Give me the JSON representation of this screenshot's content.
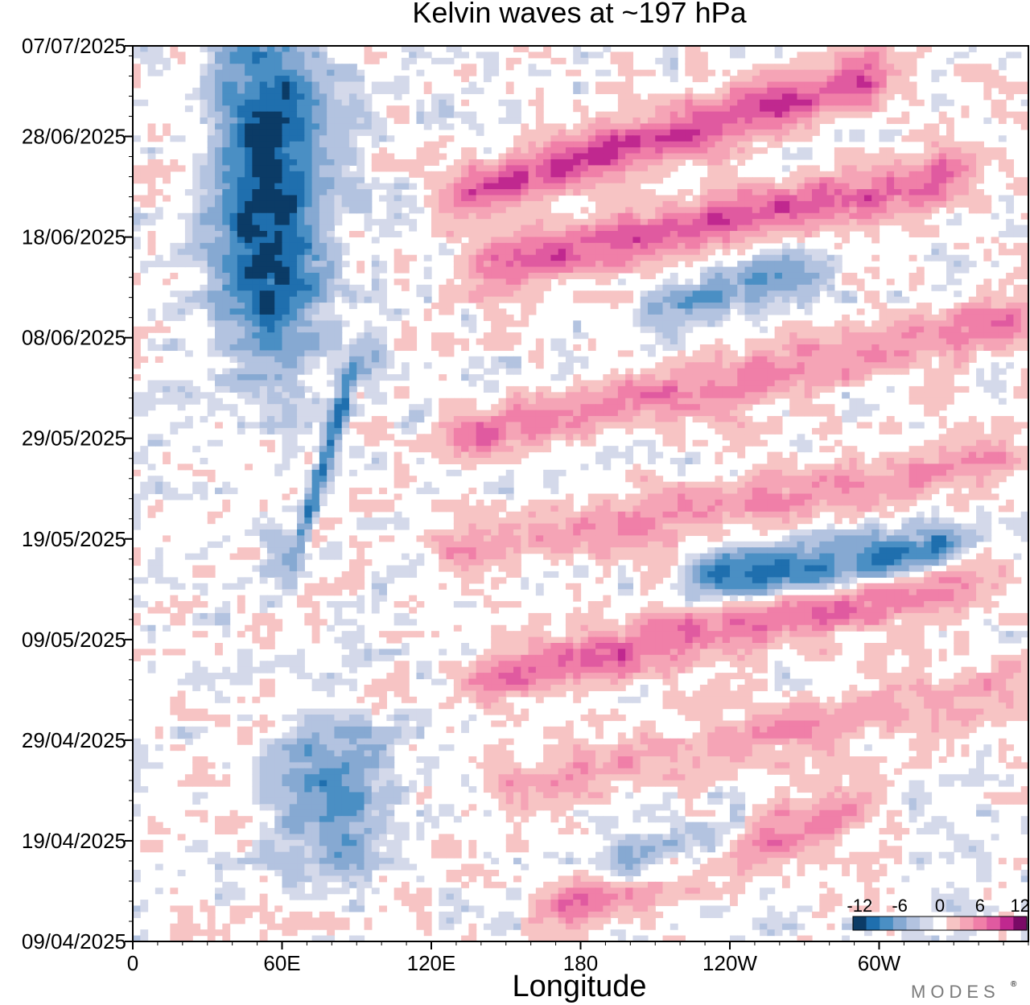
{
  "chart_data": {
    "type": "heatmap",
    "title": "Kelvin waves at ~197 hPa",
    "xlabel": "Longitude",
    "ylabel": "",
    "x_ticks": [
      "0",
      "60E",
      "120E",
      "180",
      "120W",
      "60W"
    ],
    "x_tick_values": [
      0,
      60,
      120,
      180,
      240,
      300
    ],
    "xlim": [
      0,
      360
    ],
    "y_ticks": [
      "07/07/2025",
      "28/06/2025",
      "18/06/2025",
      "08/06/2025",
      "29/05/2025",
      "19/05/2025",
      "09/05/2025",
      "29/04/2025",
      "19/04/2025",
      "09/04/2025"
    ],
    "y_tick_days": [
      89,
      80,
      70,
      60,
      50,
      40,
      30,
      20,
      10,
      0
    ],
    "ylim_days": [
      0,
      89
    ],
    "colorbar": {
      "levels": [
        -12,
        -10,
        -8,
        -6,
        -4,
        -2,
        0,
        2,
        4,
        6,
        8,
        10,
        12
      ],
      "labels": [
        "-12",
        "-6",
        "0",
        "6",
        "12"
      ],
      "colors": [
        "#0b3b66",
        "#1f6fae",
        "#4a8fc4",
        "#86a9d2",
        "#b3c3e0",
        "#d4d9ea",
        "#ffffff",
        "#f7c4c4",
        "#f5a4b6",
        "#f07fa8",
        "#e05aa0",
        "#c0288f",
        "#7a0a66"
      ]
    },
    "negative_bands": [
      {
        "desc": "stationary convective anomaly near 40-100E",
        "lon_start": 55,
        "lon_end": 55,
        "day_start": 60,
        "day_end": 89,
        "amp": -11
      },
      {
        "desc": "mid-May/early-June anomaly near 70-100E",
        "lon_start": 65,
        "lon_end": 90,
        "day_start": 38,
        "day_end": 58,
        "amp": -8
      },
      {
        "desc": "mid-April anomaly near 70-90E",
        "lon_start": 80,
        "lon_end": 80,
        "day_start": 8,
        "day_end": 20,
        "amp": -6
      },
      {
        "desc": "eastward-propagating anomaly",
        "lon_start": 230,
        "lon_end": 330,
        "day_start": 36,
        "day_end": 39,
        "amp": -8
      },
      {
        "desc": "eastward-propagating anomaly",
        "lon_start": 215,
        "lon_end": 270,
        "day_start": 63,
        "day_end": 67,
        "amp": -5
      },
      {
        "desc": "eastward-propagating anomaly",
        "lon_start": 195,
        "lon_end": 240,
        "day_start": 7,
        "day_end": 10,
        "amp": -6
      }
    ],
    "positive_bands": [
      {
        "desc": "Kelvin wave crest",
        "lon_start": 130,
        "lon_end": 300,
        "day_start": 74,
        "day_end": 86,
        "amp": 9
      },
      {
        "desc": "Kelvin wave crest",
        "lon_start": 140,
        "lon_end": 330,
        "day_start": 67,
        "day_end": 76,
        "amp": 8
      },
      {
        "desc": "Kelvin wave crest",
        "lon_start": 130,
        "lon_end": 360,
        "day_start": 50,
        "day_end": 62,
        "amp": 6
      },
      {
        "desc": "Kelvin wave crest",
        "lon_start": 130,
        "lon_end": 350,
        "day_start": 39,
        "day_end": 48,
        "amp": 5
      },
      {
        "desc": "Kelvin wave crest",
        "lon_start": 140,
        "lon_end": 340,
        "day_start": 26,
        "day_end": 36,
        "amp": 7
      },
      {
        "desc": "Kelvin wave crest",
        "lon_start": 150,
        "lon_end": 360,
        "day_start": 15,
        "day_end": 26,
        "amp": 4
      },
      {
        "desc": "Kelvin wave crest",
        "lon_start": 170,
        "lon_end": 290,
        "day_start": 3,
        "day_end": 13,
        "amp": 6
      }
    ]
  },
  "watermark": "MODES",
  "watermark_mark": "®"
}
